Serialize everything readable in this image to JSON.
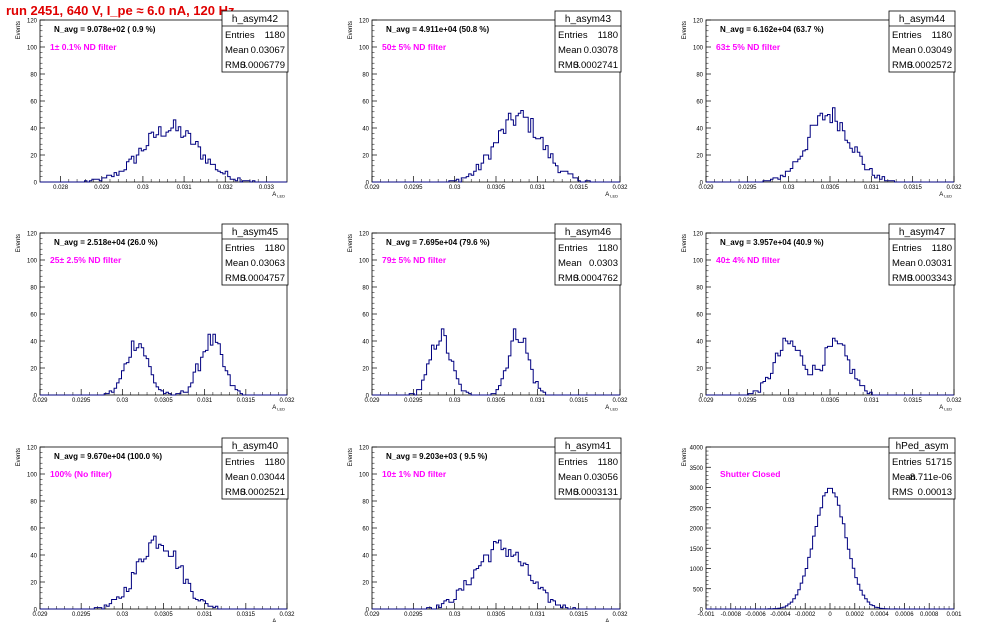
{
  "header": {
    "run_title": "run 2451,   640 V, I_pe ≈ 6.0 nA, 120 Hz"
  },
  "stat_labels": {
    "entries": "Entries",
    "mean": "Mean",
    "rms": "RMS"
  },
  "colors": {
    "histogram": "#000080",
    "annotation": "#ff00ff",
    "title_red": "#e00000"
  },
  "chart_data": [
    {
      "type": "histogram",
      "name": "h_asym42",
      "entries": "1180",
      "mean": "0.03067",
      "rms": "0.0006779",
      "navg": "N_avg = 9.078e+02 ( 0.9 %)",
      "filter": "1± 0.1% ND filter",
      "xlabel": "A_LED",
      "ylabel": "Events",
      "ylim": [
        0,
        120
      ],
      "xlim": [
        0.0275,
        0.0335
      ],
      "xticks": [
        "0.028",
        "0.029",
        "0.03",
        "0.031",
        "0.032",
        "0.033"
      ],
      "yticks": [
        "0",
        "20",
        "40",
        "60",
        "80",
        "100",
        "120"
      ],
      "dist": [
        {
          "mu": 0.03067,
          "sigma": 0.00068,
          "amp": 40
        }
      ]
    },
    {
      "type": "histogram",
      "name": "h_asym43",
      "entries": "1180",
      "mean": "0.03078",
      "rms": "0.0002741",
      "navg": "N_avg = 4.911e+04 (50.8 %)",
      "filter": "50± 5% ND filter",
      "xlabel": "A_LED",
      "ylabel": "Events",
      "ylim": [
        0,
        120
      ],
      "xlim": [
        0.029,
        0.032
      ],
      "xticks": [
        "0.029",
        "0.0295",
        "0.03",
        "0.0305",
        "0.031",
        "0.0315",
        "0.032"
      ],
      "yticks": [
        "0",
        "20",
        "40",
        "60",
        "80",
        "100",
        "120"
      ],
      "dist": [
        {
          "mu": 0.03078,
          "sigma": 0.00028,
          "amp": 48
        }
      ]
    },
    {
      "type": "histogram",
      "name": "h_asym44",
      "entries": "1180",
      "mean": "0.03049",
      "rms": "0.0002572",
      "navg": "N_avg = 6.162e+04 (63.7 %)",
      "filter": "63± 5% ND filter",
      "xlabel": "A_LED",
      "ylabel": "Events",
      "ylim": [
        0,
        120
      ],
      "xlim": [
        0.029,
        0.032
      ],
      "xticks": [
        "0.029",
        "0.0295",
        "0.03",
        "0.0305",
        "0.031",
        "0.0315",
        "0.032"
      ],
      "yticks": [
        "0",
        "20",
        "40",
        "60",
        "80",
        "100",
        "120"
      ],
      "dist": [
        {
          "mu": 0.03049,
          "sigma": 0.00026,
          "amp": 50
        }
      ]
    },
    {
      "type": "histogram",
      "name": "h_asym45",
      "entries": "1180",
      "mean": "0.03063",
      "rms": "0.0004757",
      "navg": "N_avg = 2.518e+04 (26.0 %)",
      "filter": "25± 2.5% ND filter",
      "xlabel": "A_LED",
      "ylabel": "Events",
      "ylim": [
        0,
        120
      ],
      "xlim": [
        0.029,
        0.032
      ],
      "xticks": [
        "0.029",
        "0.0295",
        "0.03",
        "0.0305",
        "0.031",
        "0.0315",
        "0.032"
      ],
      "yticks": [
        "0",
        "20",
        "40",
        "60",
        "80",
        "100",
        "120"
      ],
      "dist": [
        {
          "mu": 0.03018,
          "sigma": 0.00013,
          "amp": 40
        },
        {
          "mu": 0.03108,
          "sigma": 0.00014,
          "amp": 40
        }
      ]
    },
    {
      "type": "histogram",
      "name": "h_asym46",
      "entries": "1180",
      "mean": "0.0303",
      "rms": "0.0004762",
      "navg": "N_avg = 7.695e+04 (79.6 %)",
      "filter": "79± 5% ND filter",
      "xlabel": "A_LED",
      "ylabel": "Events",
      "ylim": [
        0,
        120
      ],
      "xlim": [
        0.029,
        0.032
      ],
      "xticks": [
        "0.029",
        "0.0295",
        "0.03",
        "0.0305",
        "0.031",
        "0.0315",
        "0.032"
      ],
      "yticks": [
        "0",
        "20",
        "40",
        "60",
        "80",
        "100",
        "120"
      ],
      "dist": [
        {
          "mu": 0.02983,
          "sigma": 0.00012,
          "amp": 44
        },
        {
          "mu": 0.03077,
          "sigma": 0.00012,
          "amp": 46
        }
      ]
    },
    {
      "type": "histogram",
      "name": "h_asym47",
      "entries": "1180",
      "mean": "0.03031",
      "rms": "0.0003343",
      "navg": "N_avg = 3.957e+04 (40.9 %)",
      "filter": "40± 4% ND filter",
      "xlabel": "A_LED",
      "ylabel": "Events",
      "ylim": [
        0,
        120
      ],
      "xlim": [
        0.029,
        0.032
      ],
      "xticks": [
        "0.029",
        "0.0295",
        "0.03",
        "0.0305",
        "0.031",
        "0.0315",
        "0.032"
      ],
      "yticks": [
        "0",
        "20",
        "40",
        "60",
        "80",
        "100",
        "120"
      ],
      "dist": [
        {
          "mu": 0.03,
          "sigma": 0.00017,
          "amp": 38
        },
        {
          "mu": 0.03057,
          "sigma": 0.00017,
          "amp": 36
        }
      ]
    },
    {
      "type": "histogram",
      "name": "h_asym40",
      "entries": "1180",
      "mean": "0.03044",
      "rms": "0.0002521",
      "navg": "N_avg = 9.670e+04 (100.0 %)",
      "filter": "100% (No filter)",
      "xlabel": "A_LED",
      "ylabel": "Events",
      "ylim": [
        0,
        120
      ],
      "xlim": [
        0.029,
        0.032
      ],
      "xticks": [
        "0.029",
        "0.0295",
        "0.03",
        "0.0305",
        "0.031",
        "0.0315",
        "0.032"
      ],
      "yticks": [
        "0",
        "20",
        "40",
        "60",
        "80",
        "100",
        "120"
      ],
      "dist": [
        {
          "mu": 0.03044,
          "sigma": 0.00025,
          "amp": 52
        }
      ]
    },
    {
      "type": "histogram",
      "name": "h_asym41",
      "entries": "1180",
      "mean": "0.03056",
      "rms": "0.0003131",
      "navg": "N_avg = 9.203e+03 ( 9.5 %)",
      "filter": "10± 1% ND filter",
      "xlabel": "A_LED",
      "ylabel": "Events",
      "ylim": [
        0,
        120
      ],
      "xlim": [
        0.029,
        0.032
      ],
      "xticks": [
        "0.029",
        "0.0295",
        "0.03",
        "0.0305",
        "0.031",
        "0.0315",
        "0.032"
      ],
      "yticks": [
        "0",
        "20",
        "40",
        "60",
        "80",
        "100",
        "120"
      ],
      "dist": [
        {
          "mu": 0.03056,
          "sigma": 0.00031,
          "amp": 46
        }
      ]
    },
    {
      "type": "histogram",
      "name": "hPed_asym",
      "entries": "51715",
      "mean": "-8.711e-06",
      "rms": "0.00013",
      "navg": "",
      "filter": "Shutter Closed",
      "xlabel": "",
      "ylabel": "Events",
      "ylim": [
        0,
        4000
      ],
      "xlim": [
        -0.001,
        0.001
      ],
      "xticks": [
        "-0.001",
        "-0.0008",
        "-0.0006",
        "-0.0004",
        "-0.0002",
        "0",
        "0.0002",
        "0.0004",
        "0.0006",
        "0.0008",
        "0.001"
      ],
      "yticks": [
        "0",
        "500",
        "1000",
        "1500",
        "2000",
        "2500",
        "3000",
        "3500",
        "4000"
      ],
      "dist": [
        {
          "mu": 0.0,
          "sigma": 0.00013,
          "amp": 2950
        }
      ]
    }
  ]
}
